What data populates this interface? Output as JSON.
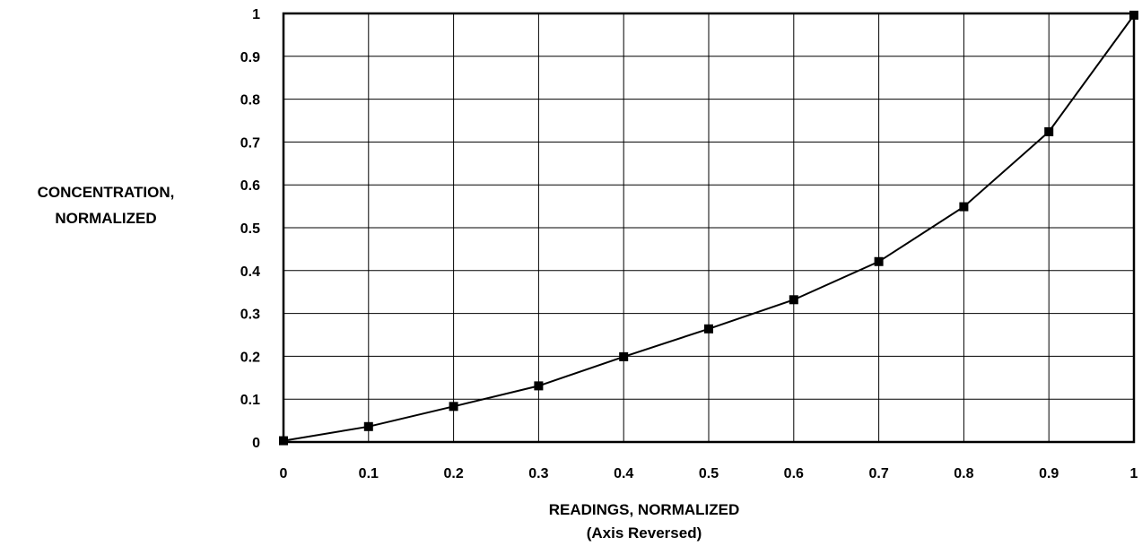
{
  "chart_data": {
    "type": "line",
    "ylabel": [
      "CONCENTRATION,",
      "NORMALIZED"
    ],
    "xlabel": [
      "READINGS, NORMALIZED",
      "(Axis Reversed)"
    ],
    "xlim": [
      0,
      1
    ],
    "ylim": [
      0,
      1
    ],
    "x_ticks": [
      "0",
      "0.1",
      "0.2",
      "0.3",
      "0.4",
      "0.5",
      "0.6",
      "0.7",
      "0.8",
      "0.9",
      "1"
    ],
    "y_ticks": [
      "0",
      "0.1",
      "0.2",
      "0.3",
      "0.4",
      "0.5",
      "0.6",
      "0.7",
      "0.8",
      "0.9",
      "1"
    ],
    "grid": true,
    "marker": "square",
    "line_color": "#000000",
    "series": [
      {
        "x": [
          0,
          0.1,
          0.2,
          0.3,
          0.4,
          0.5,
          0.6,
          0.7,
          0.8,
          0.9,
          1.0
        ],
        "y": [
          0.003,
          0.036,
          0.083,
          0.131,
          0.199,
          0.264,
          0.332,
          0.421,
          0.549,
          0.724,
          0.996
        ]
      }
    ]
  }
}
